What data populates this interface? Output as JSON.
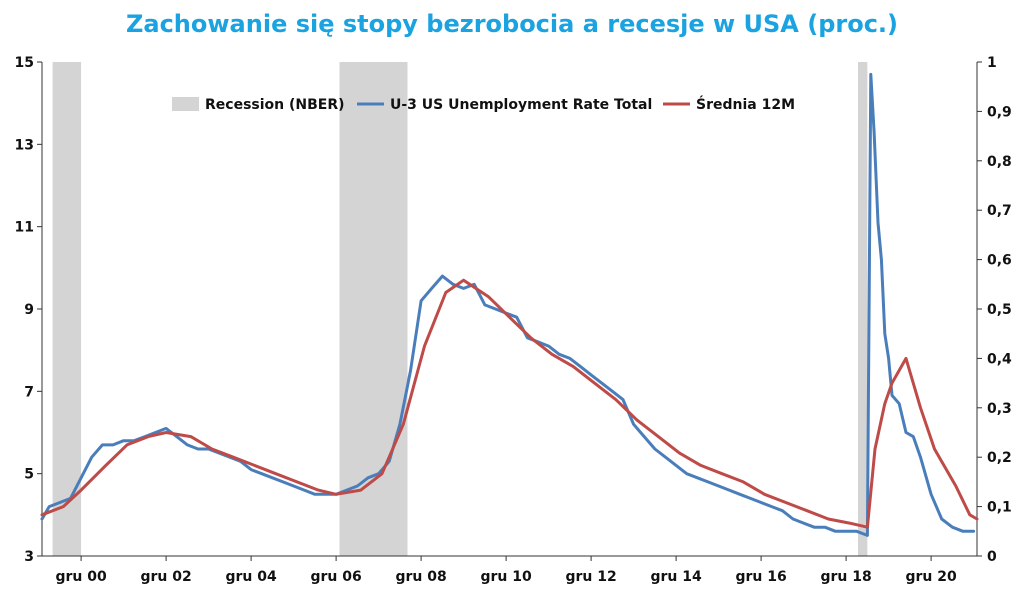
{
  "chart_data": {
    "type": "line",
    "title": "Zachowanie się stopy bezrobocia a recesje w USA (proc.)",
    "x_tick_labels": [
      "gru 00",
      "gru 02",
      "gru 04",
      "gru 06",
      "gru 08",
      "gru 10",
      "gru 12",
      "gru 14",
      "gru 16",
      "gru 18",
      "gru 20"
    ],
    "x_tick_values": [
      2000.92,
      2002.92,
      2004.92,
      2006.92,
      2008.92,
      2010.92,
      2012.92,
      2014.92,
      2016.92,
      2018.92,
      2020.92
    ],
    "xlim": [
      2000.0,
      2022.0
    ],
    "y_left": {
      "ylim": [
        3,
        15
      ],
      "ticks": [
        "3",
        "5",
        "7",
        "9",
        "11",
        "13",
        "15"
      ],
      "tick_values": [
        3,
        5,
        7,
        9,
        11,
        13,
        15
      ]
    },
    "y_right": {
      "ylim": [
        0,
        1
      ],
      "ticks": [
        "0",
        "0,1",
        "0,2",
        "0,3",
        "0,4",
        "0,5",
        "0,6",
        "0,7",
        "0,8",
        "0,9",
        "1"
      ],
      "tick_values": [
        0,
        0.1,
        0.2,
        0.3,
        0.4,
        0.5,
        0.6,
        0.7,
        0.8,
        0.9,
        1
      ]
    },
    "legend": {
      "placement": "top",
      "entries": [
        {
          "label": "Recession (NBER)",
          "color": "#d4d4d4",
          "kind": "area"
        },
        {
          "label": "U-3 US Unemployment Rate Total",
          "color": "#4a7ebb",
          "kind": "line"
        },
        {
          "label": "Średnia 12M",
          "color": "#be4b48",
          "kind": "line"
        }
      ]
    },
    "series": [
      {
        "name": "Recession (NBER)",
        "axis": "right",
        "color": "#d4d4d4",
        "periods": [
          [
            2000.25,
            2000.92
          ],
          [
            2007.0,
            2008.6
          ],
          [
            2019.2,
            2019.42
          ]
        ],
        "value": 1
      },
      {
        "name": "U-3 US Unemployment Rate Total",
        "axis": "left",
        "color": "#4a7ebb",
        "x": [
          2000.0,
          2000.17,
          2000.42,
          2000.67,
          2000.92,
          2001.17,
          2001.42,
          2001.67,
          2001.92,
          2002.17,
          2002.42,
          2002.67,
          2002.92,
          2003.17,
          2003.42,
          2003.67,
          2003.92,
          2004.17,
          2004.42,
          2004.67,
          2004.92,
          2005.17,
          2005.42,
          2005.67,
          2005.92,
          2006.17,
          2006.42,
          2006.67,
          2006.92,
          2007.17,
          2007.42,
          2007.67,
          2007.92,
          2008.17,
          2008.42,
          2008.67,
          2008.92,
          2009.17,
          2009.42,
          2009.67,
          2009.92,
          2010.17,
          2010.42,
          2010.67,
          2010.92,
          2011.17,
          2011.42,
          2011.67,
          2011.92,
          2012.17,
          2012.42,
          2012.67,
          2012.92,
          2013.17,
          2013.42,
          2013.67,
          2013.92,
          2014.17,
          2014.42,
          2014.67,
          2014.92,
          2015.17,
          2015.42,
          2015.67,
          2015.92,
          2016.17,
          2016.42,
          2016.67,
          2016.92,
          2017.17,
          2017.42,
          2017.67,
          2017.92,
          2018.17,
          2018.42,
          2018.67,
          2018.92,
          2019.17,
          2019.42,
          2019.5,
          2019.58,
          2019.67,
          2019.75,
          2019.83,
          2019.92,
          2020.0,
          2020.17,
          2020.33,
          2020.5,
          2020.67,
          2020.92,
          2021.17,
          2021.42,
          2021.67,
          2021.92
        ],
        "values": [
          3.9,
          4.2,
          4.3,
          4.4,
          4.9,
          5.4,
          5.7,
          5.7,
          5.8,
          5.8,
          5.9,
          6.0,
          6.1,
          5.9,
          5.7,
          5.6,
          5.6,
          5.5,
          5.4,
          5.3,
          5.1,
          5.0,
          4.9,
          4.8,
          4.7,
          4.6,
          4.5,
          4.5,
          4.5,
          4.6,
          4.7,
          4.9,
          5.0,
          5.3,
          6.2,
          7.5,
          9.2,
          9.5,
          9.8,
          9.6,
          9.5,
          9.6,
          9.1,
          9.0,
          8.9,
          8.8,
          8.3,
          8.2,
          8.1,
          7.9,
          7.8,
          7.6,
          7.4,
          7.2,
          7.0,
          6.8,
          6.2,
          5.9,
          5.6,
          5.4,
          5.2,
          5.0,
          4.9,
          4.8,
          4.7,
          4.6,
          4.5,
          4.4,
          4.3,
          4.2,
          4.1,
          3.9,
          3.8,
          3.7,
          3.7,
          3.6,
          3.6,
          3.6,
          3.5,
          14.7,
          13.3,
          11.1,
          10.2,
          8.4,
          7.8,
          6.9,
          6.7,
          6.0,
          5.9,
          5.4,
          4.5,
          3.9,
          3.7,
          3.6,
          3.6
        ]
      },
      {
        "name": "Średnia 12M",
        "axis": "left",
        "color": "#be4b48",
        "x": [
          2000.0,
          2000.5,
          2000.92,
          2001.5,
          2002.0,
          2002.5,
          2002.92,
          2003.5,
          2004.0,
          2004.5,
          2005.0,
          2005.5,
          2006.0,
          2006.5,
          2006.92,
          2007.5,
          2008.0,
          2008.5,
          2009.0,
          2009.5,
          2009.92,
          2010.5,
          2011.0,
          2011.5,
          2012.0,
          2012.5,
          2013.0,
          2013.5,
          2014.0,
          2014.5,
          2015.0,
          2015.5,
          2016.0,
          2016.5,
          2017.0,
          2017.5,
          2018.0,
          2018.5,
          2019.0,
          2019.42,
          2019.6,
          2019.83,
          2020.0,
          2020.33,
          2020.67,
          2021.0,
          2021.5,
          2021.83,
          2022.0
        ],
        "values": [
          4.0,
          4.2,
          4.6,
          5.2,
          5.7,
          5.9,
          6.0,
          5.9,
          5.6,
          5.4,
          5.2,
          5.0,
          4.8,
          4.6,
          4.5,
          4.6,
          5.0,
          6.2,
          8.1,
          9.4,
          9.7,
          9.3,
          8.8,
          8.3,
          7.9,
          7.6,
          7.2,
          6.8,
          6.3,
          5.9,
          5.5,
          5.2,
          5.0,
          4.8,
          4.5,
          4.3,
          4.1,
          3.9,
          3.8,
          3.7,
          5.6,
          6.7,
          7.2,
          7.8,
          6.6,
          5.6,
          4.7,
          4.0,
          3.9
        ]
      }
    ]
  }
}
